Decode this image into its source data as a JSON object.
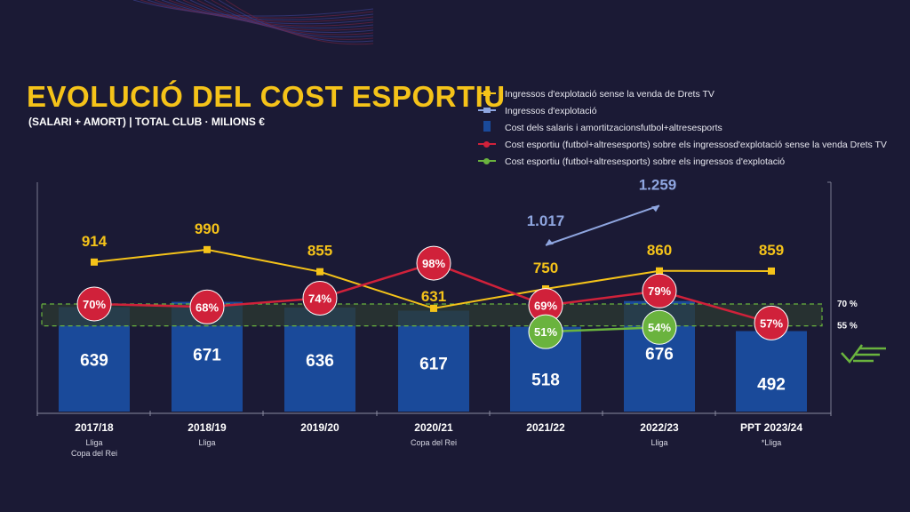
{
  "title": "EVOLUCIÓ DEL COST ESPORTIU",
  "subtitle": "(SALARI + AMORT) | TOTAL CLUB · MILIONS €",
  "colors": {
    "background": "#1b1a35",
    "yellow": "#f5c319",
    "lightblue": "#8fa6e0",
    "bar": "#1a4a9a",
    "red": "#d0213a",
    "green": "#6ab33e",
    "band": "#2c3a30"
  },
  "legend": [
    {
      "label": "Ingressos d'explotació sense la venda de Drets TV",
      "color": "#f5c319"
    },
    {
      "label": "Ingressos d'explotació",
      "color": "#8fa6e0"
    },
    {
      "label": "Cost dels salaris i amortitzacionsfutbol+altresesports",
      "color": "#1a4a9a"
    },
    {
      "label": "Cost esportiu (futbol+altresesports) sobre els ingressosd'explotació sense la venda Drets TV",
      "color": "#d0213a"
    },
    {
      "label": "Cost esportiu (futbol+altresesports) sobre els ingressos d'explotació",
      "color": "#6ab33e"
    }
  ],
  "band_labels": [
    "70 %",
    "55 %"
  ],
  "check_icon": "check-lines-icon",
  "chart_data": {
    "type": "bar+line",
    "categories": [
      "2017/18",
      "2018/19",
      "2019/20",
      "2020/21",
      "2021/22",
      "2022/23",
      "PPT 2023/24"
    ],
    "category_notes": [
      [
        "Lliga",
        "Copa del Rei"
      ],
      [
        "Lliga"
      ],
      [],
      [
        "Copa del Rei"
      ],
      [],
      [
        "Lliga"
      ],
      [
        "*Lliga"
      ]
    ],
    "unit": "MILIONS €",
    "series": [
      {
        "name": "Cost dels salaris i amortitzacionsfutbol+altresesports",
        "kind": "bar",
        "values": [
          639,
          671,
          636,
          617,
          518,
          676,
          492
        ],
        "labels": [
          "639",
          "671",
          "636",
          "617",
          "518",
          "676",
          "492"
        ]
      },
      {
        "name": "Ingressos d'explotació sense la venda de Drets TV",
        "kind": "line",
        "values": [
          914,
          990,
          855,
          631,
          750,
          860,
          859
        ],
        "labels": [
          "914",
          "990",
          "855",
          "631",
          "750",
          "860",
          "859"
        ]
      },
      {
        "name": "Ingressos d'explotació",
        "kind": "line",
        "values": [
          null,
          null,
          null,
          null,
          1017,
          1259,
          null
        ],
        "labels": [
          "",
          "",
          "",
          "",
          "1.017",
          "1.259",
          ""
        ]
      },
      {
        "name": "Cost esportiu (futbol+altresesports) sobre els ingressosd'explotació sense la venda Drets TV",
        "kind": "line",
        "axis": "percent",
        "values": [
          70,
          68,
          74,
          98,
          69,
          79,
          57
        ],
        "labels": [
          "70%",
          "68%",
          "74%",
          "98%",
          "69%",
          "79%",
          "57%"
        ]
      },
      {
        "name": "Cost esportiu (futbol+altresesports) sobre els ingressos d'explotació",
        "kind": "line",
        "axis": "percent",
        "values": [
          null,
          null,
          null,
          null,
          51,
          54,
          null
        ],
        "labels": [
          "",
          "",
          "",
          "",
          "51%",
          "54%",
          ""
        ]
      }
    ],
    "reference_band": [
      55,
      70
    ]
  }
}
